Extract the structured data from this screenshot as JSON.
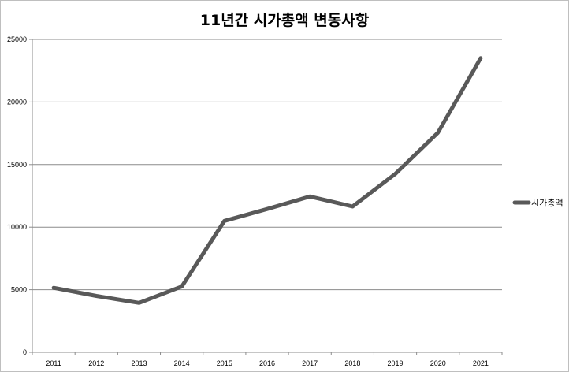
{
  "chart_data": {
    "type": "line",
    "title": "11년간 시가총액 변동사항",
    "xlabel": "",
    "ylabel": "",
    "categories": [
      "2011",
      "2012",
      "2013",
      "2014",
      "2015",
      "2016",
      "2017",
      "2018",
      "2019",
      "2020",
      "2021"
    ],
    "series": [
      {
        "name": "시가총액",
        "values": [
          5150,
          4500,
          3950,
          5250,
          10500,
          11450,
          12450,
          11650,
          14250,
          17550,
          23500
        ],
        "color": "#595959"
      }
    ],
    "ylim": [
      0,
      25000
    ],
    "yticks": [
      "0",
      "5000",
      "10000",
      "15000",
      "20000",
      "25000"
    ],
    "grid": true,
    "legend_position": "right"
  }
}
